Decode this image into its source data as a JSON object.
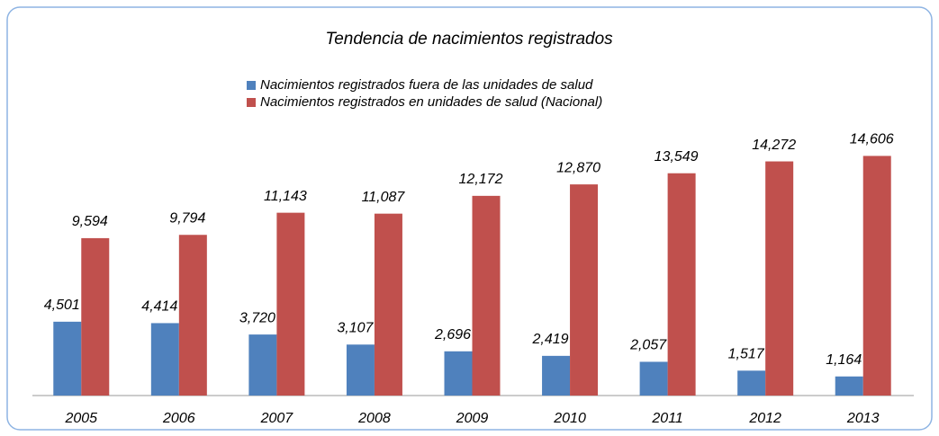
{
  "chart_data": {
    "type": "bar",
    "title": "Tendencia de nacimientos registrados",
    "categories": [
      "2005",
      "2006",
      "2007",
      "2008",
      "2009",
      "2010",
      "2011",
      "2012",
      "2013"
    ],
    "series": [
      {
        "name": "Nacimientos registrados fuera de las unidades de salud",
        "color": "#4f81bd",
        "values": [
          4501,
          4414,
          3720,
          3107,
          2696,
          2419,
          2057,
          1517,
          1164
        ],
        "value_labels": [
          "4,501",
          "4,414",
          "3,720",
          "3,107",
          "2,696",
          "2,419",
          "2,057",
          "1,517",
          "1,164"
        ]
      },
      {
        "name": "Nacimientos registrados en unidades de salud (Nacional)",
        "color": "#c0504d",
        "values": [
          9594,
          9794,
          11143,
          11087,
          12172,
          12870,
          13549,
          14272,
          14606
        ],
        "value_labels": [
          "9,594",
          "9,794",
          "11,143",
          "11,087",
          "12,172",
          "12,870",
          "13,549",
          "14,272",
          "14,606"
        ]
      }
    ],
    "ylim": [
      0,
      16000
    ]
  }
}
